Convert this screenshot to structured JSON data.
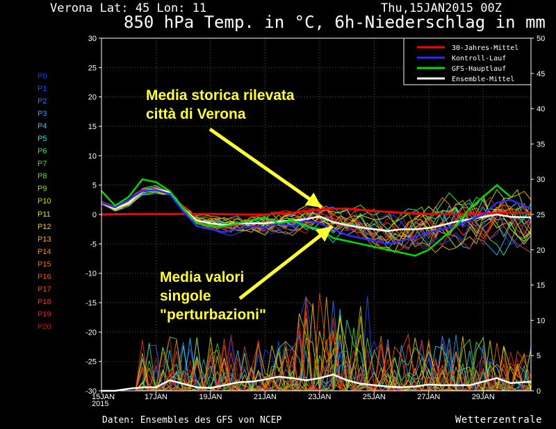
{
  "header": {
    "station": "Verona   Lat: 45 Lon: 11",
    "datetime": "Thu,15JAN2015 00Z",
    "title": "850 hPa Temp. in °C, 6h-Niederschlag in mm"
  },
  "footer": {
    "credit": "Daten: Ensembles des GFS von NCEP",
    "brand": "Wetterzentrale"
  },
  "members": [
    "P0",
    "P1",
    "P2",
    "P3",
    "P4",
    "P5",
    "P6",
    "P7",
    "P8",
    "P9",
    "P10",
    "P11",
    "P12",
    "P13",
    "P14",
    "P15",
    "P16",
    "P17",
    "P18",
    "P19",
    "P20"
  ],
  "member_colors": [
    "#1a3cff",
    "#2050ff",
    "#2a78ff",
    "#2aa0ff",
    "#20c8ff",
    "#20e0e0",
    "#30e080",
    "#40e040",
    "#60e020",
    "#90e020",
    "#c0e000",
    "#e0e000",
    "#f0d000",
    "#f0b000",
    "#f09000",
    "#f07000",
    "#f05000",
    "#f04020",
    "#e83020",
    "#e02020",
    "#d01010"
  ],
  "annotations": {
    "top": "Media storica rilevata\ncittà di Verona",
    "bottom": "Media valori\nsingole\n\"perturbazioni\""
  },
  "chart_data": {
    "type": "line",
    "left_axis": {
      "min": -30,
      "max": 30,
      "ticks": [
        30,
        25,
        20,
        15,
        10,
        5,
        0,
        -5,
        -10,
        -15,
        -20,
        -25,
        -30
      ],
      "tick_labels": [
        "30",
        "25",
        "20",
        "15",
        "10",
        "5",
        "0",
        "-5",
        "-10",
        "-15",
        "-20",
        "-25",
        "-30"
      ]
    },
    "right_axis": {
      "min": 0,
      "max": 50,
      "ticks": [
        50,
        45,
        40,
        35,
        30,
        25,
        20,
        15,
        10,
        5,
        0
      ],
      "tick_labels": [
        "50",
        "45",
        "40",
        "35",
        "30",
        "25",
        "20",
        "15",
        "10",
        "5",
        "0"
      ]
    },
    "x_axis": {
      "start_day": 15,
      "end_day": 30.75,
      "tick_days": [
        15,
        17,
        19,
        21,
        23,
        25,
        27,
        29
      ],
      "tick_labels": [
        "15JAN",
        "17JAN",
        "19JAN",
        "21JAN",
        "23JAN",
        "25JAN",
        "27JAN",
        "29JAN"
      ],
      "year_label": "2015"
    },
    "legend": {
      "position": "top-right",
      "entries": [
        {
          "label": "30-Jahres-Mittel",
          "color": "#ff0000"
        },
        {
          "label": "Kontroll-Lauf",
          "color": "#2a2aff"
        },
        {
          "label": "GFS-Hauptlauf",
          "color": "#00dd00"
        },
        {
          "label": "Ensemble-Mittel",
          "color": "#ffffff"
        }
      ]
    },
    "series": [
      {
        "name": "30-Jahres-Mittel",
        "axis": "left",
        "color": "#ff0000",
        "x": [
          15,
          16,
          17,
          18,
          19,
          20,
          21,
          22,
          23,
          24,
          25,
          26,
          27,
          28,
          29,
          30,
          30.75
        ],
        "y": [
          0,
          0.1,
          0.1,
          0.1,
          0.1,
          0,
          0,
          0.3,
          0.9,
          1,
          0.6,
          0.3,
          0.1,
          0.1,
          0.2,
          0.3,
          0.3
        ]
      },
      {
        "name": "Ensemble-Mittel",
        "axis": "left",
        "color": "#ffffff",
        "x": [
          15,
          15.5,
          16,
          16.5,
          17,
          17.5,
          18,
          18.5,
          19,
          19.5,
          20,
          20.5,
          21,
          21.5,
          22,
          22.5,
          23,
          23.5,
          24,
          24.5,
          25,
          25.5,
          26,
          26.5,
          27,
          27.5,
          28,
          28.5,
          29,
          29.5,
          30,
          30.75
        ],
        "y": [
          2,
          1,
          2,
          4,
          4.3,
          3.8,
          1,
          -1,
          -1.5,
          -1.8,
          -1.5,
          -1.5,
          -1.5,
          -1.2,
          -1,
          -0.8,
          -0.3,
          -1.3,
          -1.8,
          -2.2,
          -2.5,
          -2.8,
          -2.5,
          -2.5,
          -2.3,
          -1.8,
          -1.2,
          -0.8,
          -0.4,
          0,
          -0.4,
          -0.5
        ]
      },
      {
        "name": "Kontroll-Lauf",
        "axis": "left",
        "color": "#2a2aff",
        "x": [
          15,
          15.5,
          16,
          16.5,
          17,
          17.5,
          18,
          18.5,
          19,
          19.5,
          20,
          20.5,
          21,
          21.5,
          22,
          22.5,
          23,
          23.5,
          24,
          24.5,
          25,
          25.5,
          26,
          26.5,
          27,
          27.5,
          28,
          28.5,
          29,
          29.5,
          30,
          30.75
        ],
        "y": [
          2,
          1.2,
          2.5,
          4,
          4.2,
          3.5,
          0.5,
          -2,
          -2.5,
          -3,
          -2.5,
          -2,
          -2.2,
          -1.5,
          -2,
          -1,
          -1.5,
          -2.5,
          -3.5,
          -4,
          -4.5,
          -5,
          -4.5,
          -3.8,
          -3,
          -2.5,
          -2,
          -1,
          0,
          2,
          2.5,
          1
        ]
      },
      {
        "name": "GFS-Hauptlauf",
        "axis": "left",
        "color": "#00dd00",
        "x": [
          15,
          15.5,
          16,
          16.5,
          17,
          17.5,
          18,
          18.5,
          19,
          19.5,
          20,
          20.5,
          21,
          21.5,
          22,
          22.5,
          23,
          23.5,
          24,
          24.5,
          25,
          25.5,
          26,
          26.5,
          27,
          27.5,
          28,
          28.5,
          29,
          29.5,
          30
        ],
        "y": [
          4,
          1.5,
          3,
          6,
          5.5,
          4,
          1,
          -1.5,
          -2,
          -2,
          -1.5,
          -1,
          -0.5,
          -1.5,
          -1,
          -2,
          -2.5,
          -4,
          -4.5,
          -5,
          -5.5,
          -6,
          -6.5,
          -7,
          -6,
          -4,
          -2,
          1,
          3,
          5,
          3
        ]
      },
      {
        "name": "Ensemble-Mittel",
        "axis": "right",
        "color": "#ffffff",
        "x": [
          15,
          15.5,
          16,
          16.5,
          17,
          17.5,
          18,
          18.5,
          19,
          19.5,
          20,
          20.5,
          21,
          21.5,
          22,
          22.5,
          23,
          23.5,
          24,
          24.5,
          25,
          25.5,
          26,
          26.5,
          27,
          27.5,
          28,
          28.5,
          29,
          29.5,
          30,
          30.75
        ],
        "y": [
          0,
          0,
          0.3,
          0.5,
          0.5,
          1.5,
          1,
          0.5,
          0.4,
          0.8,
          1.2,
          1.3,
          1.6,
          2,
          1.8,
          1.5,
          1.8,
          2.3,
          1.5,
          1,
          0.8,
          0.6,
          0.5,
          0.6,
          0.9,
          0.8,
          0.8,
          0.8,
          1.3,
          1.8,
          1.1,
          1.3
        ]
      }
    ]
  }
}
